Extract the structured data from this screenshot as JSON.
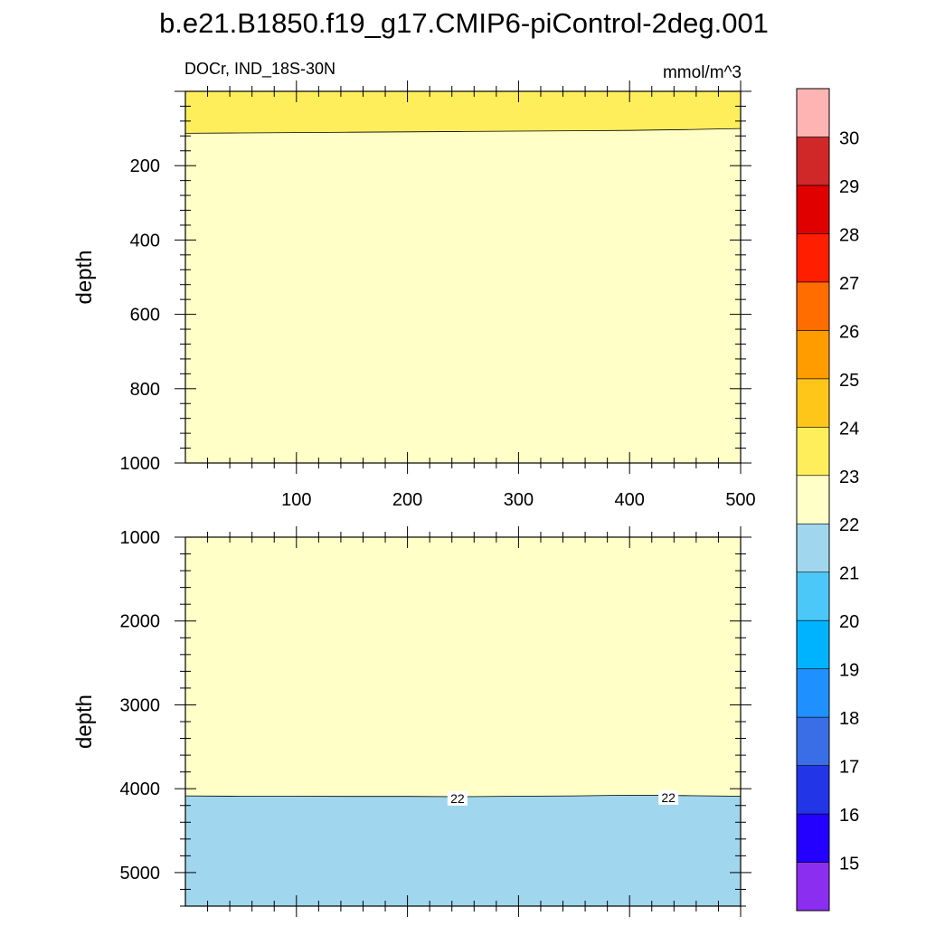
{
  "title": "b.e21.B1850.f19_g17.CMIP6-piControl-2deg.001",
  "chart_data": {
    "type": "heatmap",
    "title": "b.e21.B1850.f19_g17.CMIP6-piControl-2deg.001",
    "left_string": "DOCr, IND_18S-30N",
    "right_string": "mmol/m^3",
    "panels": [
      {
        "name": "upper",
        "xlim": [
          0,
          500
        ],
        "ylim": [
          0,
          1000
        ],
        "y_reversed": true,
        "xlabel": "",
        "ylabel": "depth",
        "x_ticks": [
          100,
          200,
          300,
          400,
          500
        ],
        "y_ticks": [
          200,
          400,
          600,
          800,
          1000
        ],
        "show_x_tick_labels": true,
        "regions": [
          {
            "range": "23-24",
            "color": "#FFEE5C",
            "from_depth": 0,
            "to_depth_boundary": "contour_23"
          },
          {
            "range": "22-23",
            "color": "#FFFFC8",
            "from_depth_boundary": "contour_23",
            "to_depth": 1000
          }
        ],
        "contour_23": {
          "x": [
            0,
            50,
            100,
            150,
            200,
            250,
            300,
            350,
            400,
            450,
            500
          ],
          "depth": [
            113,
            112,
            111,
            110,
            109,
            108,
            107,
            106,
            105,
            103,
            100
          ]
        }
      },
      {
        "name": "lower",
        "xlim": [
          0,
          500
        ],
        "ylim": [
          1000,
          5400
        ],
        "y_reversed": true,
        "xlabel": "",
        "ylabel": "depth",
        "x_ticks": [
          100,
          200,
          300,
          400,
          500
        ],
        "y_ticks": [
          1000,
          2000,
          3000,
          4000,
          5000
        ],
        "show_x_tick_labels": false,
        "regions": [
          {
            "range": "22-23",
            "color": "#FFFFC8",
            "from_depth": 1000,
            "to_depth_boundary": "contour_22"
          },
          {
            "range": "21-22",
            "color": "#A0D6EE",
            "from_depth_boundary": "contour_22",
            "to_depth": 5400
          }
        ],
        "contour_22": {
          "x": [
            0,
            50,
            100,
            150,
            200,
            250,
            300,
            350,
            400,
            450,
            500
          ],
          "depth": [
            4085,
            4090,
            4090,
            4092,
            4092,
            4095,
            4090,
            4085,
            4078,
            4082,
            4090
          ]
        },
        "contour_labels": [
          {
            "text": "22",
            "x": 245,
            "depth": 4115
          },
          {
            "text": "22",
            "x": 435,
            "depth": 4105
          }
        ]
      }
    ],
    "colorbar": {
      "labels": [
        "15",
        "16",
        "17",
        "18",
        "19",
        "20",
        "21",
        "22",
        "23",
        "24",
        "25",
        "26",
        "27",
        "28",
        "29",
        "30"
      ],
      "colors": [
        "#8B2EF0",
        "#2300FF",
        "#2236E8",
        "#3A6EE6",
        "#1E90FF",
        "#00B3FF",
        "#4CC8F8",
        "#A0D6EE",
        "#FFFFC8",
        "#FFEE5C",
        "#FFC61A",
        "#FF9D00",
        "#FF6C00",
        "#FF1E00",
        "#E00000",
        "#D02828",
        "#FFB4B4"
      ]
    }
  }
}
